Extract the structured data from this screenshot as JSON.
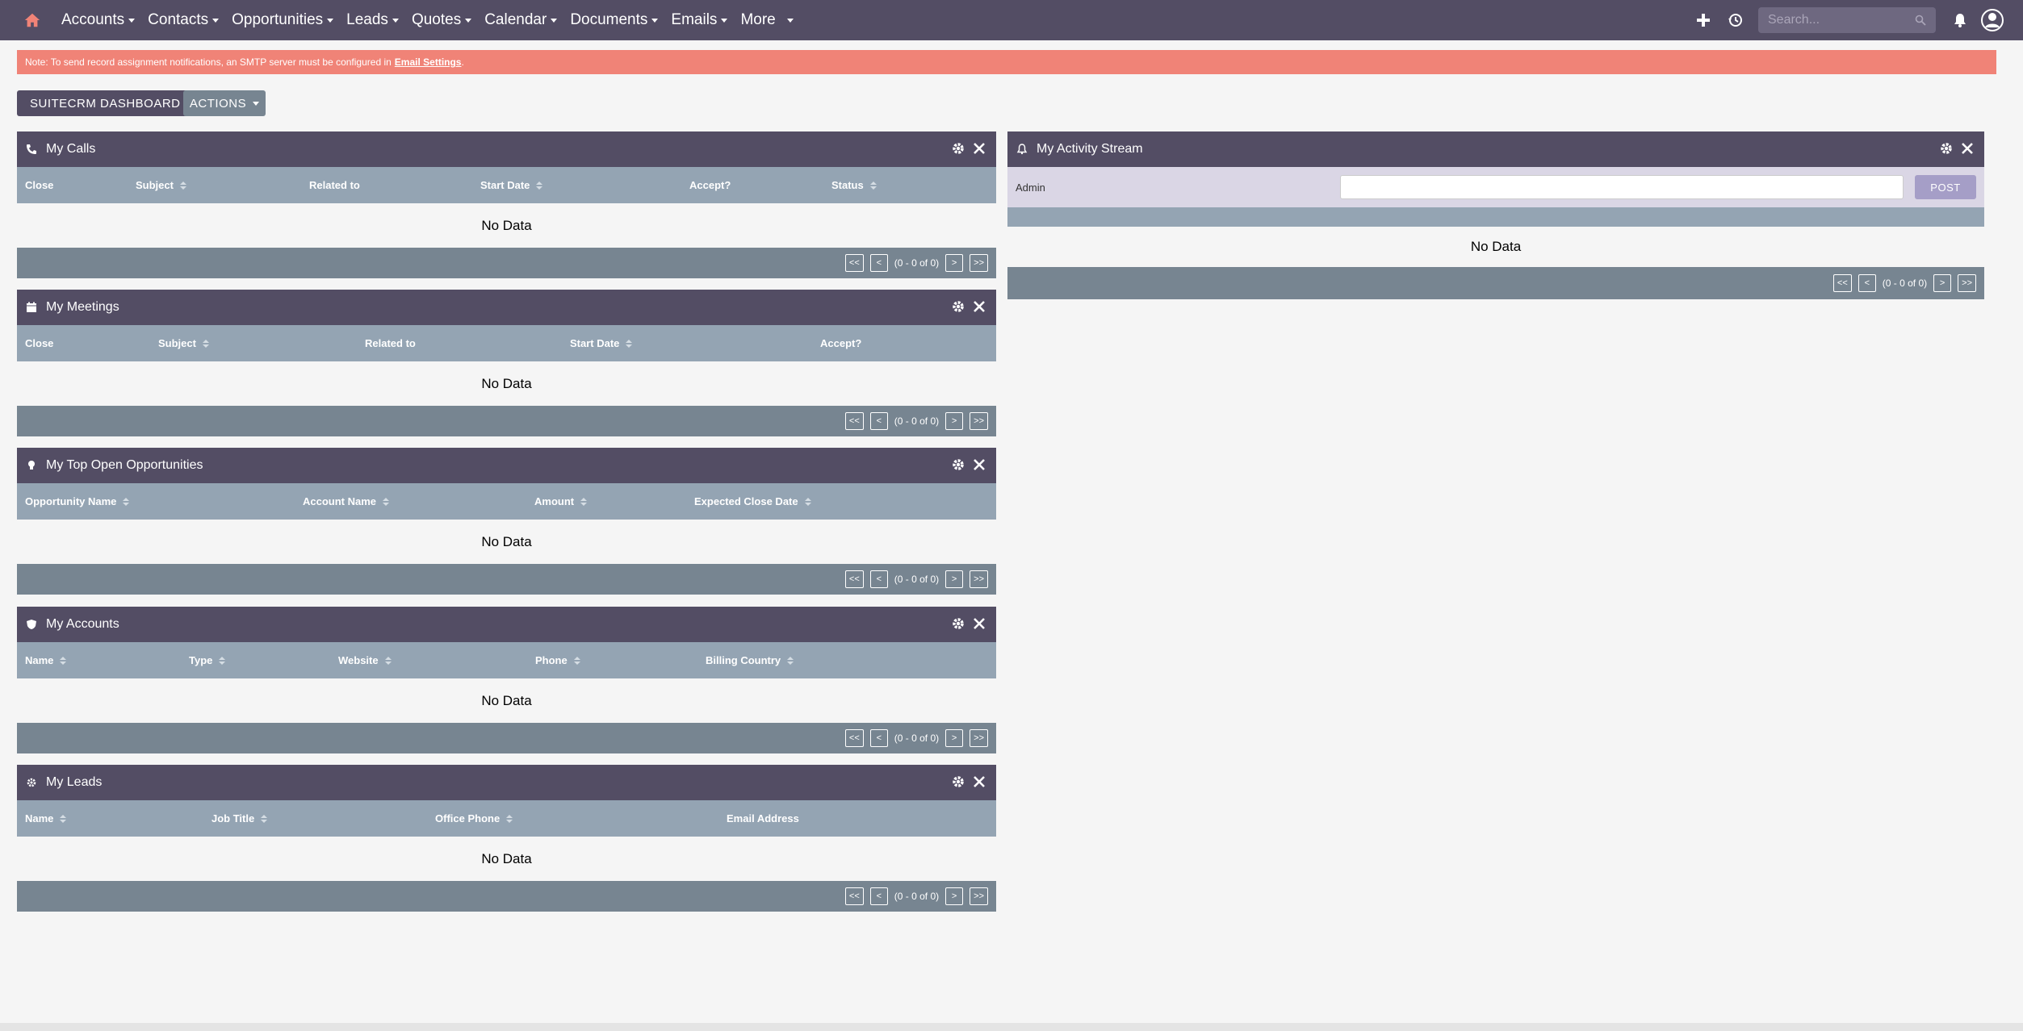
{
  "nav": {
    "items": [
      {
        "label": "Accounts"
      },
      {
        "label": "Contacts"
      },
      {
        "label": "Opportunities"
      },
      {
        "label": "Leads"
      },
      {
        "label": "Quotes"
      },
      {
        "label": "Calendar"
      },
      {
        "label": "Documents"
      },
      {
        "label": "Emails"
      },
      {
        "label": "More"
      }
    ],
    "search_placeholder": "Search...",
    "accent_color": "#534d64",
    "home_icon_color": "#f08377"
  },
  "alert": {
    "text": "Note: To send record assignment notifications, an SMTP server must be configured in",
    "link": "Email Settings",
    "suffix": "."
  },
  "toolbar": {
    "dashboard_label": "SUITECRM DASHBOARD",
    "actions_label": "ACTIONS"
  },
  "dashlets": {
    "calls": {
      "title": "My Calls",
      "icon": "phone-icon",
      "columns": [
        "Close",
        "Subject",
        "Related to",
        "Start Date",
        "Accept?",
        "Status"
      ],
      "empty": "No Data",
      "pagination": {
        "first": "<<",
        "prev": "<",
        "count": "(0 - 0 of 0)",
        "next": ">",
        "last": ">>"
      }
    },
    "meetings": {
      "title": "My Meetings",
      "icon": "calendar-icon",
      "columns": [
        "Close",
        "Subject",
        "Related to",
        "Start Date",
        "Accept?"
      ],
      "empty": "No Data",
      "pagination": {
        "first": "<<",
        "prev": "<",
        "count": "(0 - 0 of 0)",
        "next": ">",
        "last": ">>"
      }
    },
    "opportunities": {
      "title": "My Top Open Opportunities",
      "icon": "lightbulb-icon",
      "columns": [
        "Opportunity Name",
        "Account Name",
        "Amount",
        "Expected Close Date"
      ],
      "empty": "No Data",
      "pagination": {
        "first": "<<",
        "prev": "<",
        "count": "(0 - 0 of 0)",
        "next": ">",
        "last": ">>"
      }
    },
    "accounts": {
      "title": "My Accounts",
      "icon": "shield-icon",
      "columns": [
        "Name",
        "Type",
        "Website",
        "Phone",
        "Billing Country"
      ],
      "empty": "No Data",
      "pagination": {
        "first": "<<",
        "prev": "<",
        "count": "(0 - 0 of 0)",
        "next": ">",
        "last": ">>"
      }
    },
    "leads": {
      "title": "My Leads",
      "icon": "gear-icon",
      "columns": [
        "Name",
        "Job Title",
        "Office Phone",
        "Email Address"
      ],
      "empty": "No Data",
      "pagination": {
        "first": "<<",
        "prev": "<",
        "count": "(0 - 0 of 0)",
        "next": ">",
        "last": ">>"
      }
    },
    "activity": {
      "title": "My Activity Stream",
      "icon": "bell-icon",
      "user": "Admin",
      "post_label": "POST",
      "empty": "No Data",
      "pagination": {
        "first": "<<",
        "prev": "<",
        "count": "(0 - 0 of 0)",
        "next": ">",
        "last": ">>"
      }
    }
  }
}
